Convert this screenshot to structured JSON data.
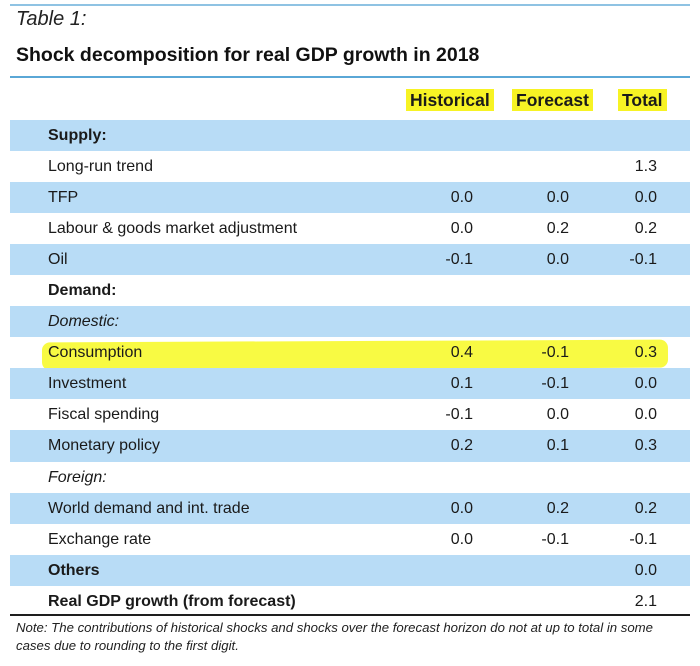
{
  "caption": "Table 1:",
  "title": "Shock decomposition for real GDP growth in 2018",
  "columns": {
    "historical": "Historical",
    "forecast": "Forecast",
    "total": "Total"
  },
  "colors": {
    "header_highlight": "#f7f324",
    "row_shade": "#b8dcf6",
    "highlight_yellow": "#f6f91a",
    "highlight_green": "#7eb82a"
  },
  "rows": [
    {
      "label": "Supply:",
      "historical": "",
      "forecast": "",
      "total": ""
    },
    {
      "label": "Long-run trend",
      "historical": "",
      "forecast": "",
      "total": "1.3"
    },
    {
      "label": "TFP",
      "historical": "0.0",
      "forecast": "0.0",
      "total": "0.0"
    },
    {
      "label": "Labour & goods market adjustment",
      "historical": "0.0",
      "forecast": "0.2",
      "total": "0.2"
    },
    {
      "label": "Oil",
      "historical": "-0.1",
      "forecast": "0.0",
      "total": "-0.1"
    },
    {
      "label": "Demand:",
      "historical": "",
      "forecast": "",
      "total": ""
    },
    {
      "label": "Domestic:",
      "historical": "",
      "forecast": "",
      "total": ""
    },
    {
      "label": "Consumption",
      "historical": "0.4",
      "forecast": "-0.1",
      "total": "0.3"
    },
    {
      "label": "Investment",
      "historical": "0.1",
      "forecast": "-0.1",
      "total": "0.0"
    },
    {
      "label": "Fiscal spending",
      "historical": "-0.1",
      "forecast": "0.0",
      "total": "0.0"
    },
    {
      "label": "Monetary policy",
      "historical": "0.2",
      "forecast": "0.1",
      "total": "0.3"
    },
    {
      "label": "Foreign:",
      "historical": "",
      "forecast": "",
      "total": ""
    },
    {
      "label": "World demand and int. trade",
      "historical": "0.0",
      "forecast": "0.2",
      "total": "0.2"
    },
    {
      "label": "Exchange rate",
      "historical": "0.0",
      "forecast": "-0.1",
      "total": "-0.1"
    },
    {
      "label": "Others",
      "historical": "",
      "forecast": "",
      "total": "0.0"
    },
    {
      "label": "Real GDP growth (from forecast)",
      "historical": "",
      "forecast": "",
      "total": "2.1"
    }
  ],
  "note": "Note: The contributions of historical shocks and shocks over the forecast horizon do not at up to total in some cases due to rounding to the first digit."
}
